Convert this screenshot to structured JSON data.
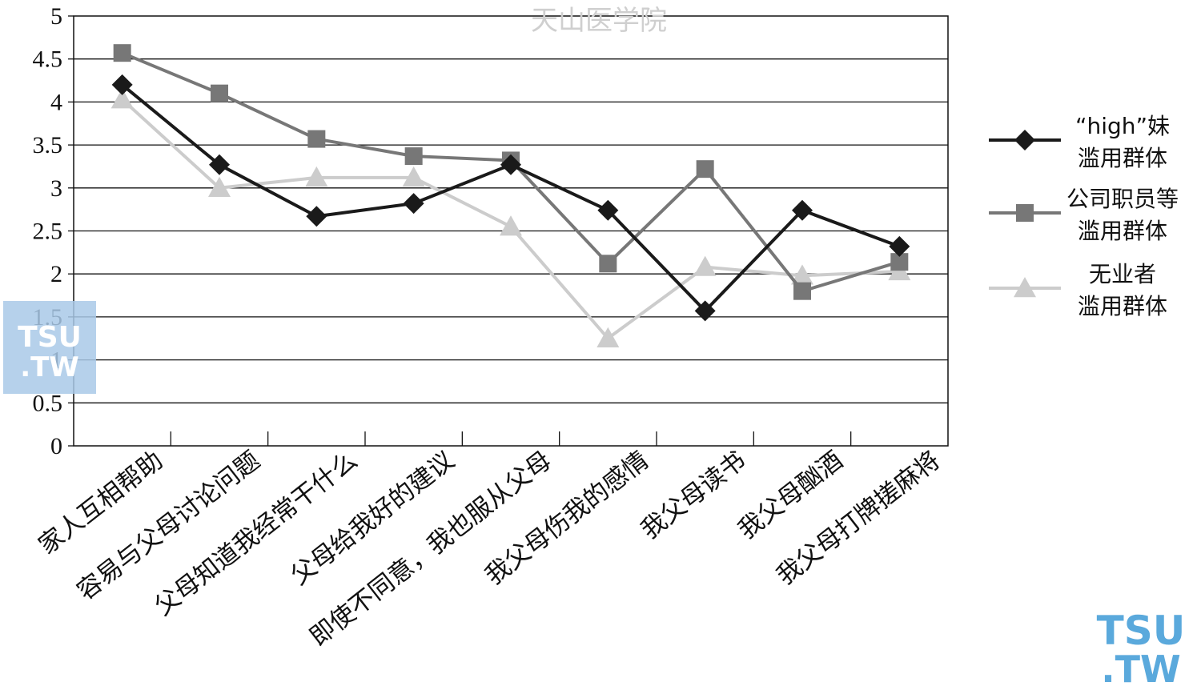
{
  "watermark": {
    "top_text": "天山医学院",
    "logo_line1": "TSU",
    "logo_line2": ".TW"
  },
  "chart_data": {
    "type": "line",
    "title": "",
    "xlabel": "",
    "ylabel": "",
    "ylim": [
      0,
      5
    ],
    "yticks": [
      0,
      0.5,
      1,
      1.5,
      2,
      2.5,
      3,
      3.5,
      4,
      4.5,
      5
    ],
    "ytick_labels": [
      "0",
      "0.5",
      "1",
      "1.5",
      "2",
      "2.5",
      "3",
      "3.5",
      "4",
      "4.5",
      "5"
    ],
    "grid": "horizontal",
    "legend_position": "right",
    "categories": [
      "家人互相帮助",
      "容易与父母讨论问题",
      "父母知道我经常干什么",
      "父母给我好的建议",
      "即使不同意，我也服从父母",
      "我父母伤我的感情",
      "我父母读书",
      "我父母酗酒",
      "我父母打牌搓麻将"
    ],
    "series": [
      {
        "name": [
          "“high”妹",
          "滥用群体"
        ],
        "color": "#1a1a1a",
        "marker": "diamond",
        "values": [
          4.2,
          3.27,
          2.67,
          2.82,
          3.27,
          2.74,
          1.57,
          2.74,
          2.32
        ]
      },
      {
        "name": [
          "公司职员等",
          "滥用群体"
        ],
        "color": "#777777",
        "marker": "square",
        "values": [
          4.57,
          4.1,
          3.57,
          3.37,
          3.32,
          2.12,
          3.22,
          1.8,
          2.14
        ]
      },
      {
        "name": [
          "无业者",
          "滥用群体"
        ],
        "color": "#cccccc",
        "marker": "triangle",
        "values": [
          4.03,
          3.0,
          3.12,
          3.12,
          2.55,
          1.25,
          2.08,
          1.98,
          2.03
        ]
      }
    ]
  }
}
